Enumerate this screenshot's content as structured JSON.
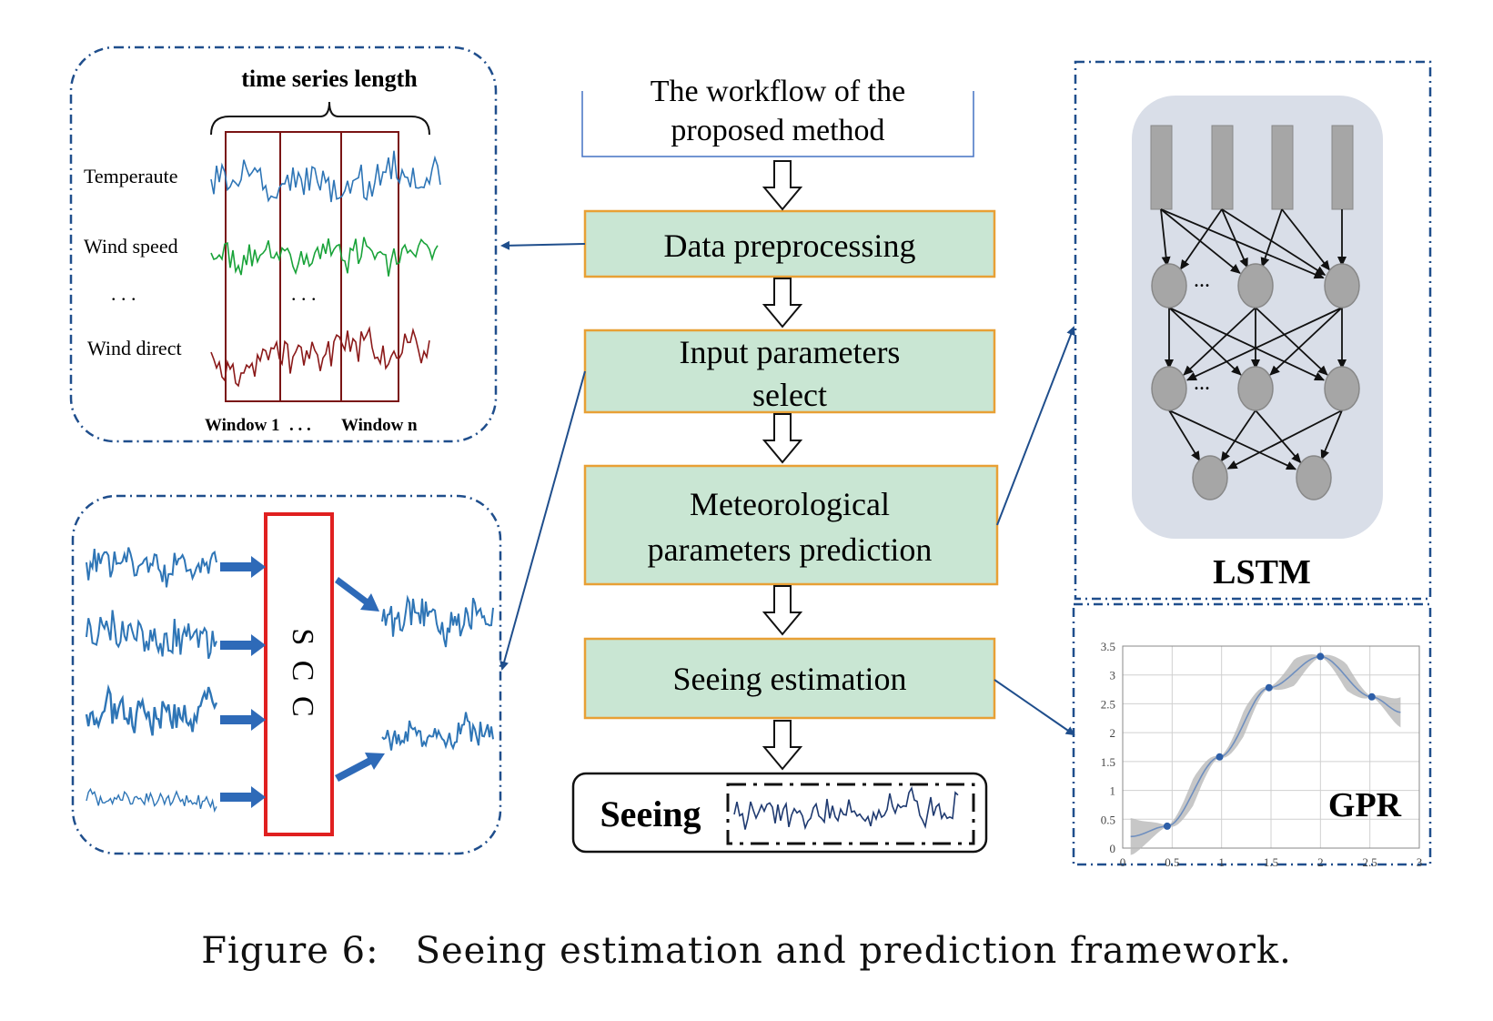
{
  "workflow": {
    "title_line1": "The workflow of the",
    "title_line2": "proposed method",
    "steps": [
      {
        "line1": "Data preprocessing",
        "line2": ""
      },
      {
        "line1": "Input parameters",
        "line2": "select"
      },
      {
        "line1": "Meteorological",
        "line2": "parameters prediction"
      },
      {
        "line1": "Seeing estimation",
        "line2": ""
      }
    ],
    "output_label": "Seeing"
  },
  "preprocessing_panel": {
    "header": "time series length",
    "rows": [
      "Temperaute",
      "Wind speed",
      ". . .",
      "Wind direct"
    ],
    "middle_dots": ". . .",
    "window_first": "Window 1",
    "window_dots": ". . .",
    "window_last": "Window n"
  },
  "scc_panel": {
    "label": "S C C"
  },
  "lstm_panel": {
    "label": "LSTM",
    "dots": "..."
  },
  "gpr_panel": {
    "label": "GPR",
    "x_ticks": [
      "0",
      "0.5",
      "1",
      "1.5",
      "2",
      "2.5",
      "3"
    ],
    "y_ticks": [
      "0",
      "0.5",
      "1",
      "1.5",
      "2",
      "2.5",
      "3",
      "3.5"
    ],
    "points": [
      [
        0.45,
        0.38
      ],
      [
        0.98,
        1.58
      ],
      [
        1.48,
        2.78
      ],
      [
        2.0,
        3.32
      ],
      [
        2.52,
        2.62
      ]
    ]
  },
  "caption": {
    "number": "Figure 6:",
    "text": "Seeing estimation and prediction framework."
  },
  "colors": {
    "box_fill": "#c9e6d3",
    "box_border": "#e8a035",
    "arrow_blue": "#1f4e8c",
    "panel_border": "#1f4e8c",
    "series_blue": "#2e75b6",
    "series_green": "#1aa33a",
    "series_red": "#8b1a1a",
    "scc_red": "#e02020",
    "lstm_bg": "#d9dee8",
    "node_gray": "#a6a6a6"
  }
}
